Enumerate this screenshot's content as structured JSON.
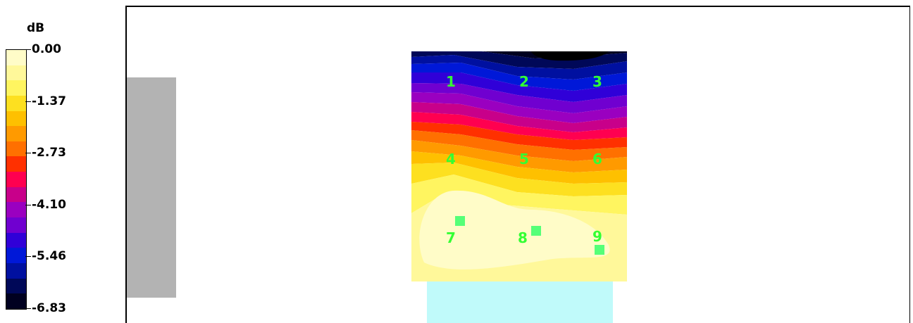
{
  "chart_data": {
    "type": "heatmap",
    "colorbar": {
      "unit": "dB",
      "ticks": [
        "0.00",
        "-1.37",
        "-2.73",
        "-4.10",
        "-5.46",
        "-6.83"
      ],
      "colors": [
        "#fffcc8",
        "#fff89a",
        "#fff560",
        "#fde020",
        "#fec000",
        "#ff9a00",
        "#ff7000",
        "#ff3000",
        "#ff0050",
        "#c8008a",
        "#9a00c0",
        "#7000d0",
        "#3000d8",
        "#0018d8",
        "#0010a0",
        "#000858",
        "#000020"
      ]
    },
    "points": [
      {
        "label": "1",
        "marker": false
      },
      {
        "label": "2",
        "marker": false
      },
      {
        "label": "3",
        "marker": false
      },
      {
        "label": "4",
        "marker": false
      },
      {
        "label": "5",
        "marker": false
      },
      {
        "label": "6",
        "marker": false
      },
      {
        "label": "7",
        "marker": true
      },
      {
        "label": "8",
        "marker": true
      },
      {
        "label": "9",
        "marker": true
      }
    ],
    "colors": {
      "left_block": "#b3b3b3",
      "bottom_block": "#c0fafa",
      "labels": "#33ff33"
    }
  }
}
